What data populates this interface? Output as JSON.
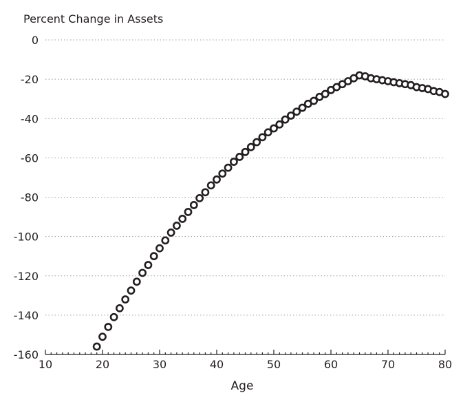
{
  "chart_data": {
    "type": "scatter",
    "ylabel": "Percent Change in Assets",
    "xlabel": "Age",
    "xlim": [
      10,
      80
    ],
    "ylim": [
      -160,
      0
    ],
    "xticks": [
      10,
      20,
      30,
      40,
      50,
      60,
      70,
      80
    ],
    "yticks": [
      0,
      -20,
      -40,
      -60,
      -80,
      -100,
      -120,
      -140,
      -160
    ],
    "grid": "horizontal dotted",
    "legend": "none",
    "marker": "open circle",
    "colors": {
      "marker_stroke": "#231f20",
      "marker_fill": "#ffffff",
      "grid": "#9a9a9a"
    },
    "series": [
      {
        "x": [
          19,
          20,
          21,
          22,
          23,
          24,
          25,
          26,
          27,
          28,
          29,
          30,
          31,
          32,
          33,
          34,
          35,
          36,
          37,
          38,
          39,
          40,
          41,
          42,
          43,
          44,
          45,
          46,
          47,
          48,
          49,
          50,
          51,
          52,
          53,
          54,
          55,
          56,
          57,
          58,
          59,
          60,
          61,
          62,
          63,
          64,
          65,
          66,
          67,
          68,
          69,
          70,
          71,
          72,
          73,
          74,
          75,
          76,
          77,
          78,
          79,
          80
        ],
        "values": [
          -156,
          -151,
          -146,
          -141,
          -136.5,
          -132,
          -127.5,
          -123,
          -118.5,
          -114.5,
          -110,
          -106,
          -102,
          -98,
          -94.5,
          -91,
          -87.5,
          -84,
          -80.5,
          -77.5,
          -74,
          -71,
          -68,
          -65,
          -62,
          -59.5,
          -57,
          -54.5,
          -52,
          -49.5,
          -47,
          -45,
          -43,
          -40.5,
          -38.5,
          -36.5,
          -34.5,
          -32.5,
          -31,
          -29,
          -27.5,
          -25.5,
          -24,
          -22.5,
          -21,
          -19.5,
          -18,
          -18.5,
          -19.5,
          -20,
          -20.5,
          -21,
          -21.5,
          -22,
          -22.5,
          -23,
          -24,
          -24.5,
          -25,
          -26,
          -26.5,
          -27.5
        ]
      }
    ]
  }
}
